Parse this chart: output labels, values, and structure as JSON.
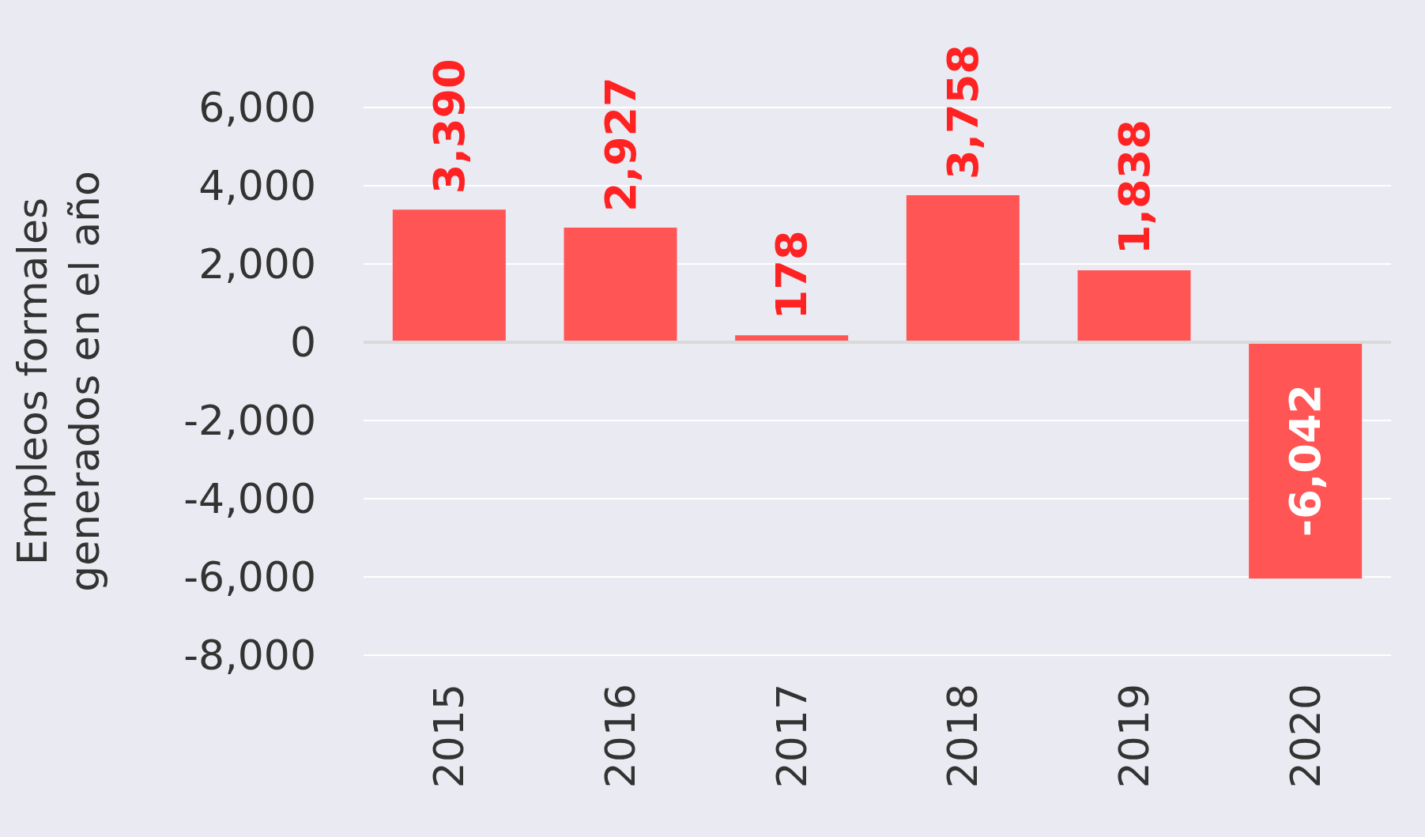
{
  "chart_data": {
    "type": "bar",
    "ylabel": "Empleos formales\ngenerados en el año",
    "categories": [
      "2015",
      "2016",
      "2017",
      "2018",
      "2019",
      "2020"
    ],
    "values": [
      3390,
      2927,
      178,
      3758,
      1838,
      -6042
    ],
    "color": "#ff5555",
    "value_labels": [
      "3,390",
      "2,927",
      "178",
      "3,758",
      "1,838",
      "-6,042"
    ],
    "ylim": [
      -8000,
      6000
    ],
    "yticks": [
      {
        "value": -8000,
        "label": "-8,000"
      },
      {
        "value": -6000,
        "label": "-6,000"
      },
      {
        "value": -4000,
        "label": "-4,000"
      },
      {
        "value": -2000,
        "label": "-2,000"
      },
      0,
      {
        "value": 2000,
        "label": "2,000"
      },
      {
        "value": 4000,
        "label": "4,000"
      },
      {
        "value": 6000,
        "label": "6,000"
      }
    ],
    "grid": "y",
    "ref_lines": [
      {
        "axis": "y",
        "value": 0,
        "color": "#d9d9d9"
      }
    ]
  }
}
